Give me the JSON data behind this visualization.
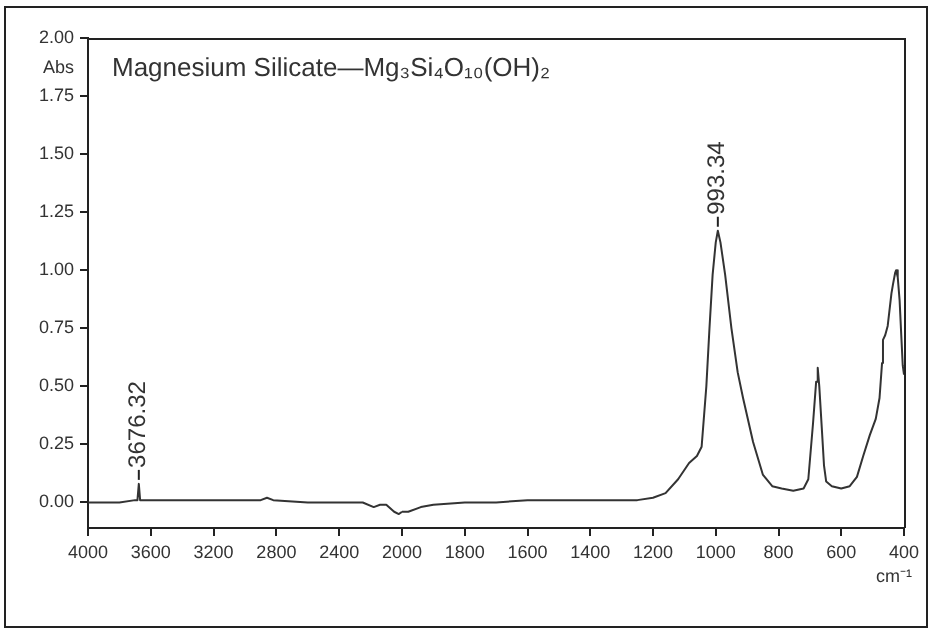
{
  "chart_data": [
    {
      "type": "line",
      "title": "Magnesium Silicate—Mg₃Si₄O₁₀(OH)₂",
      "ylabel": "Abs",
      "marker": "none",
      "x": [
        4000,
        3900,
        3800,
        3700,
        3685,
        3676.32,
        3668,
        3600,
        3500,
        3300,
        3100,
        2900,
        2860,
        2820,
        2600,
        2400,
        2250,
        2180,
        2140,
        2100,
        2050,
        2020,
        2000
      ],
      "series": [
        {
          "color": "#333333",
          "values": [
            0,
            0,
            0,
            0.01,
            0.01,
            0.08,
            0.01,
            0.01,
            0.01,
            0.01,
            0.01,
            0.01,
            0.02,
            0.01,
            0,
            0,
            0,
            -0.02,
            -0.01,
            -0.01,
            -0.04,
            -0.05,
            -0.04
          ]
        }
      ],
      "xlim": [
        4000,
        2000
      ],
      "xticks": [
        4000,
        3600,
        3200,
        2800,
        2400,
        2000
      ],
      "ylim": [
        -0.11,
        2
      ],
      "yticks": [
        {
          "value": 0,
          "label": "0.00"
        },
        {
          "value": 0.25,
          "label": "0.25"
        },
        {
          "value": 0.5,
          "label": "0.50"
        },
        {
          "value": 0.75,
          "label": "0.75"
        },
        {
          "value": 1,
          "label": "1.00"
        },
        {
          "value": 1.25,
          "label": "1.25"
        },
        {
          "value": 1.5,
          "label": "1.50"
        },
        {
          "value": 1.75,
          "label": "1.75"
        },
        {
          "value": 2,
          "label": "2.00"
        }
      ],
      "annotations": [
        {
          "text": "3676.32",
          "x": 3676.32,
          "y": 0.08
        }
      ]
    },
    {
      "type": "line",
      "xlabel": "cm⁻¹",
      "marker": "none",
      "tick_labels": "x",
      "x": [
        2000,
        1980,
        1940,
        1900,
        1800,
        1700,
        1600,
        1500,
        1400,
        1300,
        1250,
        1200,
        1160,
        1120,
        1085,
        1060,
        1045,
        1030,
        1020,
        1010,
        1000,
        993.34,
        985,
        970,
        950,
        930,
        913,
        881,
        850,
        820,
        790,
        753,
        720,
        705,
        690,
        680,
        675,
        670,
        662,
        655,
        648,
        630,
        600,
        573,
        550,
        530,
        509,
        490,
        478,
        470,
        467,
        460,
        452,
        440,
        435,
        428,
        425,
        420,
        414,
        408,
        404,
        400
      ],
      "series": [
        {
          "color": "#333333",
          "values": [
            -0.04,
            -0.04,
            -0.02,
            -0.01,
            0,
            0,
            0.01,
            0.01,
            0.01,
            0.01,
            0.01,
            0.02,
            0.04,
            0.1,
            0.17,
            0.2,
            0.24,
            0.5,
            0.75,
            0.98,
            1.12,
            1.17,
            1.12,
            0.98,
            0.75,
            0.56,
            0.45,
            0.26,
            0.12,
            0.07,
            0.06,
            0.05,
            0.06,
            0.1,
            0.34,
            0.52,
            0.58,
            0.5,
            0.32,
            0.16,
            0.09,
            0.07,
            0.06,
            0.07,
            0.11,
            0.2,
            0.29,
            0.36,
            0.45,
            0.6,
            0.7,
            0.72,
            0.76,
            0.9,
            0.94,
            0.99,
            1,
            0.97,
            0.87,
            0.7,
            0.59,
            0.55
          ]
        }
      ],
      "xlim": [
        2000,
        400
      ],
      "xticks": [
        1800,
        1600,
        1400,
        1200,
        1000,
        800,
        600,
        400
      ],
      "ylim": [
        -0.11,
        2
      ],
      "annotations": [
        {
          "text": "993.34",
          "x": 993.34,
          "y": 1.17
        }
      ]
    }
  ]
}
